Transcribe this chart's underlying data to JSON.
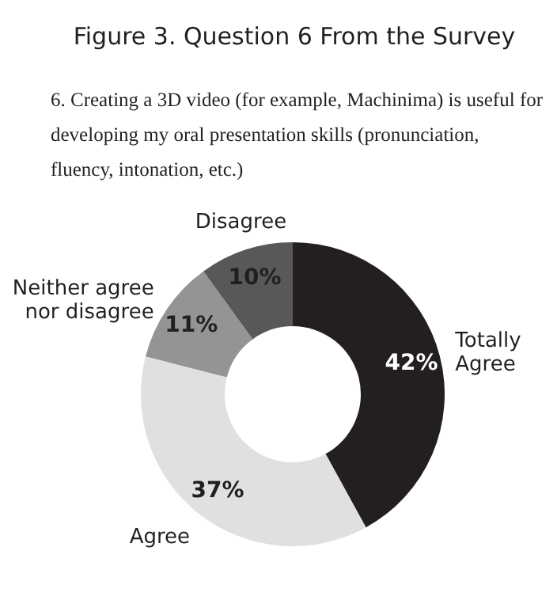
{
  "chart_data": {
    "type": "donut",
    "title": "Figure 3. Question 6 From the Survey",
    "subtitle": "6. Creating a 3D video (for example, Machinima) is useful for developing my oral presentation skills (pronunciation, fluency, intonation, etc.)",
    "categories": [
      "Totally Agree",
      "Agree",
      "Neither agree nor disagree",
      "Disagree"
    ],
    "values": [
      42,
      37,
      11,
      10
    ],
    "colors": [
      "#231f20",
      "#e0e0e2",
      "#939496",
      "#58585a"
    ],
    "value_labels": [
      "42%",
      "37%",
      "11%",
      "10%"
    ],
    "legend": false
  }
}
